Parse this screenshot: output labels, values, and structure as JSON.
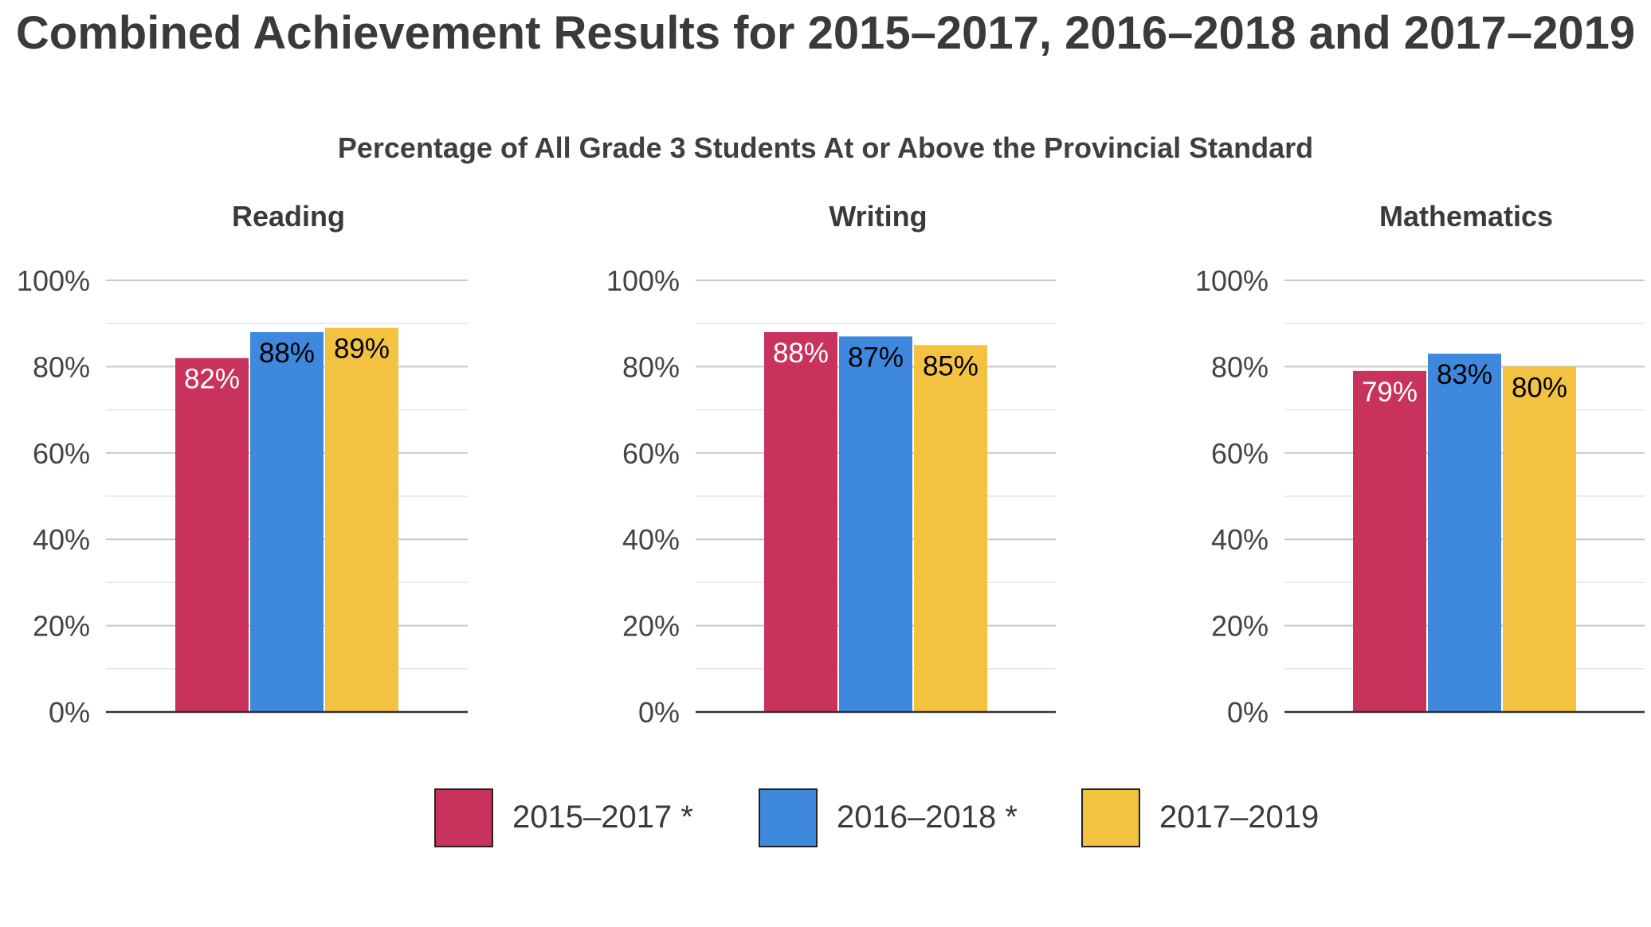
{
  "title": "Combined Achievement Results for 2015–2017, 2016–2018 and 2017–2019",
  "subtitle": "Percentage of All Grade 3 Students At or Above the Provincial Standard",
  "colors": {
    "series_1": "#c8325c",
    "series_2": "#3e88de",
    "series_3": "#f4c241",
    "gridline": "#c8c8c8",
    "gridline_minor": "#e6e6e6",
    "axis": "#333333",
    "label_light": "#ffffff",
    "label_dark": "#000000"
  },
  "legend": {
    "items": [
      {
        "label": "2015–2017 *",
        "color": "#c8325c"
      },
      {
        "label": "2016–2018 *",
        "color": "#3e88de"
      },
      {
        "label": "2017–2019",
        "color": "#f4c241"
      }
    ]
  },
  "chart_data": [
    {
      "type": "bar",
      "title": "Reading",
      "categories": [
        ""
      ],
      "ylim": [
        0,
        100
      ],
      "yticks": [
        "0%",
        "20%",
        "40%",
        "60%",
        "80%",
        "100%"
      ],
      "grid": true,
      "series": [
        {
          "name": "2015–2017 *",
          "values": [
            82
          ],
          "labels": [
            "82%"
          ]
        },
        {
          "name": "2016–2018 *",
          "values": [
            88
          ],
          "labels": [
            "88%"
          ]
        },
        {
          "name": "2017–2019",
          "values": [
            89
          ],
          "labels": [
            "89%"
          ]
        }
      ]
    },
    {
      "type": "bar",
      "title": "Writing",
      "categories": [
        ""
      ],
      "ylim": [
        0,
        100
      ],
      "yticks": [
        "0%",
        "20%",
        "40%",
        "60%",
        "80%",
        "100%"
      ],
      "grid": true,
      "series": [
        {
          "name": "2015–2017 *",
          "values": [
            88
          ],
          "labels": [
            "88%"
          ]
        },
        {
          "name": "2016–2018 *",
          "values": [
            87
          ],
          "labels": [
            "87%"
          ]
        },
        {
          "name": "2017–2019",
          "values": [
            85
          ],
          "labels": [
            "85%"
          ]
        }
      ]
    },
    {
      "type": "bar",
      "title": "Mathematics",
      "categories": [
        ""
      ],
      "ylim": [
        0,
        100
      ],
      "yticks": [
        "0%",
        "20%",
        "40%",
        "60%",
        "80%",
        "100%"
      ],
      "grid": true,
      "series": [
        {
          "name": "2015–2017 *",
          "values": [
            79
          ],
          "labels": [
            "79%"
          ]
        },
        {
          "name": "2016–2018 *",
          "values": [
            83
          ],
          "labels": [
            "83%"
          ]
        },
        {
          "name": "2017–2019",
          "values": [
            80
          ],
          "labels": [
            "80%"
          ]
        }
      ]
    }
  ]
}
